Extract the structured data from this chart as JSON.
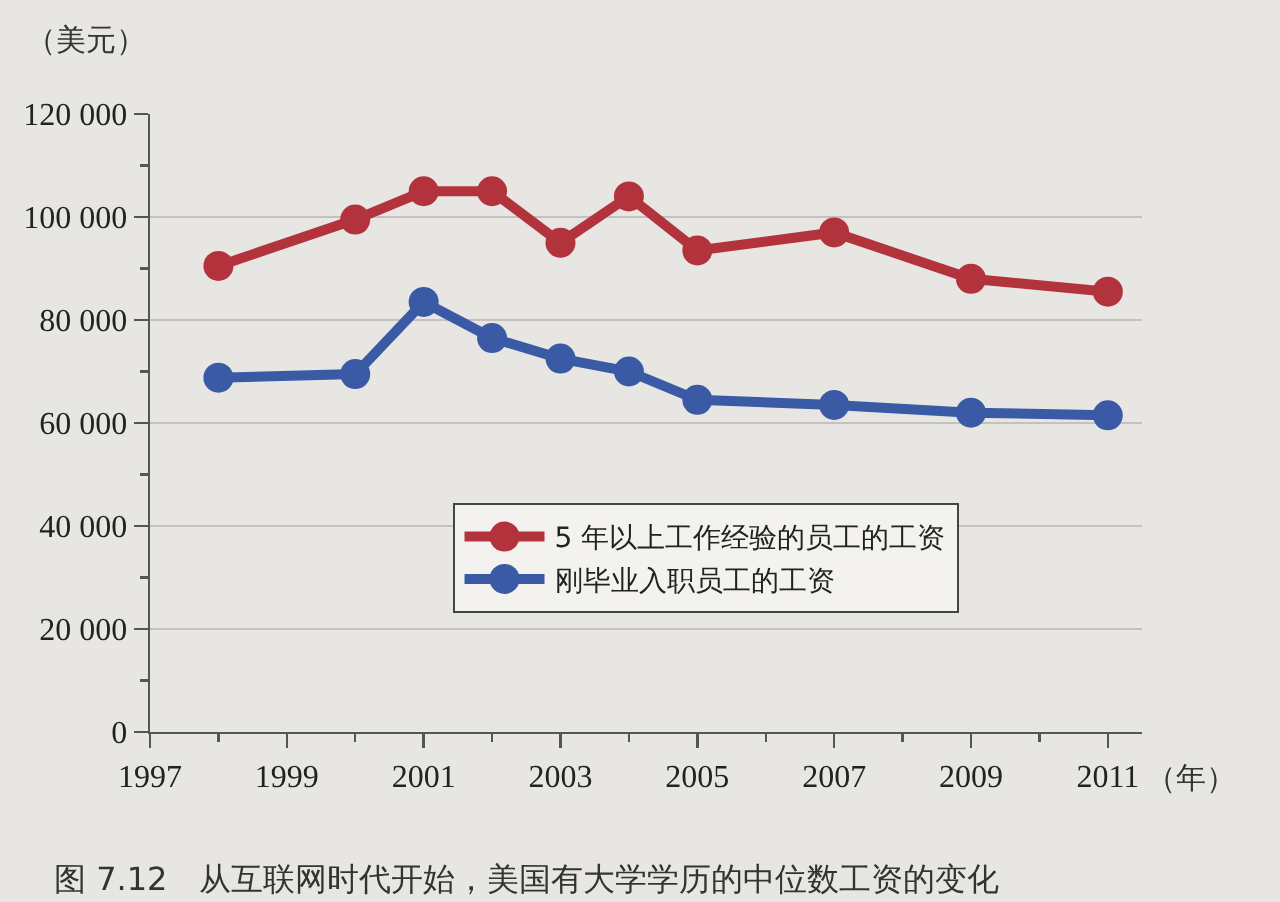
{
  "chart_data": {
    "type": "line",
    "ylabel": "（美元）",
    "xlabel": "（年）",
    "annotations": [
      "图 7.12　从互联网时代开始，美国有大学学历的中位数工资的变化"
    ],
    "x": [
      1998,
      2000,
      2001,
      2002,
      2003,
      2004,
      2005,
      2007,
      2009,
      2011
    ],
    "series": [
      {
        "name": "5 年以上工作经验的员工的工资",
        "color": "#b3333d",
        "values": [
          90500,
          99500,
          105000,
          105000,
          95000,
          104000,
          93500,
          97000,
          88000,
          85500
        ]
      },
      {
        "name": "刚毕业入职员工的工资",
        "color": "#3b5aa6",
        "values": [
          68800,
          69500,
          83500,
          76500,
          72500,
          70000,
          64500,
          63500,
          62000,
          61500
        ]
      }
    ],
    "xlim": [
      1997,
      2011.5
    ],
    "xticks": [
      1997,
      {
        "value": 1998,
        "label": null
      },
      1999,
      {
        "value": 2000,
        "label": null
      },
      2001,
      {
        "value": 2002,
        "label": null
      },
      2003,
      {
        "value": 2004,
        "label": null
      },
      2005,
      {
        "value": 2006,
        "label": null
      },
      2007,
      {
        "value": 2008,
        "label": null
      },
      2009,
      {
        "value": 2010,
        "label": null
      },
      2011
    ],
    "ylim": [
      0,
      120000
    ],
    "yticks": [
      0,
      {
        "value": 10000,
        "label": null
      },
      {
        "value": 20000,
        "label": "20 000"
      },
      {
        "value": 30000,
        "label": null
      },
      {
        "value": 40000,
        "label": "40 000"
      },
      {
        "value": 50000,
        "label": null
      },
      {
        "value": 60000,
        "label": "60 000"
      },
      {
        "value": 70000,
        "label": null
      },
      {
        "value": 80000,
        "label": "80 000"
      },
      {
        "value": 90000,
        "label": null
      },
      {
        "value": 100000,
        "label": "100 000"
      },
      {
        "value": 110000,
        "label": null
      },
      {
        "value": 120000,
        "label": "120 000"
      }
    ],
    "grid": "y",
    "legend": "bottom",
    "marker": "circle"
  }
}
